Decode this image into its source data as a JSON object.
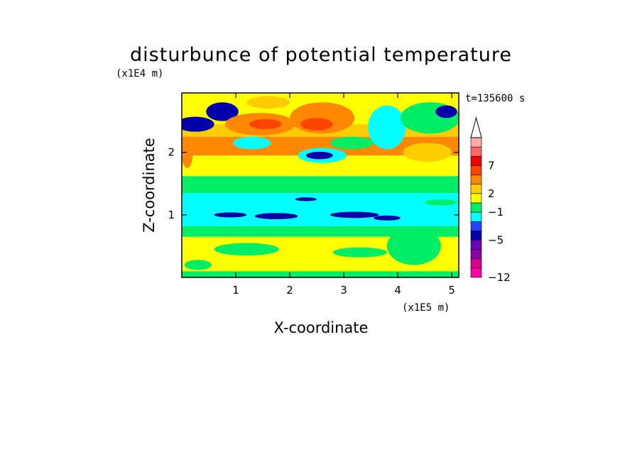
{
  "chart_data": {
    "type": "heatmap",
    "title": "disturbunce of potential temperature",
    "xlabel": "X-coordinate",
    "ylabel": "Z-coordinate",
    "x_scale_label": "(x1E5 m)",
    "y_scale_label": "(x1E4 m)",
    "time_label": "t=135600 s",
    "xlim": [
      0,
      5.13
    ],
    "ylim": [
      0,
      2.95
    ],
    "x_ticks": [
      1,
      2,
      3,
      4,
      5
    ],
    "y_ticks": [
      1,
      2
    ],
    "x_tick_labels": [
      "1",
      "2",
      "3",
      "4",
      "5"
    ],
    "y_tick_labels": [
      "1",
      "2"
    ],
    "colorbar": {
      "colors": [
        "#ff00aa",
        "#d6008f",
        "#8800aa",
        "#6a00b8",
        "#0000aa",
        "#2244ff",
        "#00ffff",
        "#00ee66",
        "#ffff00",
        "#ffcc00",
        "#ff8800",
        "#ff4400",
        "#ee0000",
        "#ff6666",
        "#ffaaaa"
      ],
      "tick_labels": [
        "7",
        "2",
        "−1",
        "−5",
        "−12"
      ],
      "extend": "max"
    },
    "bands": [
      {
        "z0": 0.0,
        "z1": 0.1,
        "level": 7
      },
      {
        "z0": 0.1,
        "z1": 0.65,
        "level": 8
      },
      {
        "z0": 0.65,
        "z1": 0.82,
        "level": 7
      },
      {
        "z0": 0.82,
        "z1": 1.35,
        "level": 6
      },
      {
        "z0": 1.35,
        "z1": 1.62,
        "level": 7
      },
      {
        "z0": 1.62,
        "z1": 1.95,
        "level": 8
      },
      {
        "z0": 1.95,
        "z1": 2.25,
        "level": 10
      },
      {
        "z0": 2.25,
        "z1": 2.45,
        "level": 9
      },
      {
        "z0": 2.45,
        "z1": 2.95,
        "level": 8
      }
    ],
    "features": [
      {
        "x": 0.25,
        "z": 2.45,
        "rx": 0.35,
        "rz": 0.12,
        "level": 4
      },
      {
        "x": 0.75,
        "z": 2.65,
        "rx": 0.3,
        "rz": 0.15,
        "level": 4
      },
      {
        "x": 1.45,
        "z": 2.45,
        "rx": 0.65,
        "rz": 0.18,
        "level": 10
      },
      {
        "x": 1.55,
        "z": 2.45,
        "rx": 0.3,
        "rz": 0.08,
        "level": 11
      },
      {
        "x": 2.6,
        "z": 2.55,
        "rx": 0.6,
        "rz": 0.25,
        "level": 10
      },
      {
        "x": 2.5,
        "z": 2.45,
        "rx": 0.3,
        "rz": 0.1,
        "level": 11
      },
      {
        "x": 1.6,
        "z": 2.8,
        "rx": 0.4,
        "rz": 0.1,
        "level": 9
      },
      {
        "x": 0.1,
        "z": 1.95,
        "rx": 0.1,
        "rz": 0.2,
        "level": 10
      },
      {
        "x": 1.3,
        "z": 2.15,
        "rx": 0.35,
        "rz": 0.1,
        "level": 6
      },
      {
        "x": 2.6,
        "z": 1.95,
        "rx": 0.45,
        "rz": 0.12,
        "level": 6
      },
      {
        "x": 2.55,
        "z": 1.95,
        "rx": 0.25,
        "rz": 0.06,
        "level": 4
      },
      {
        "x": 3.15,
        "z": 2.15,
        "rx": 0.4,
        "rz": 0.1,
        "level": 7
      },
      {
        "x": 3.8,
        "z": 2.4,
        "rx": 0.35,
        "rz": 0.35,
        "level": 6
      },
      {
        "x": 4.6,
        "z": 2.55,
        "rx": 0.55,
        "rz": 0.25,
        "level": 7
      },
      {
        "x": 4.9,
        "z": 2.65,
        "rx": 0.2,
        "rz": 0.1,
        "level": 4
      },
      {
        "x": 4.55,
        "z": 2.0,
        "rx": 0.45,
        "rz": 0.15,
        "level": 9
      },
      {
        "x": 0.9,
        "z": 1.0,
        "rx": 0.3,
        "rz": 0.04,
        "level": 4
      },
      {
        "x": 1.75,
        "z": 0.98,
        "rx": 0.4,
        "rz": 0.05,
        "level": 4
      },
      {
        "x": 3.2,
        "z": 1.0,
        "rx": 0.45,
        "rz": 0.05,
        "level": 4
      },
      {
        "x": 3.8,
        "z": 0.95,
        "rx": 0.25,
        "rz": 0.04,
        "level": 4
      },
      {
        "x": 2.3,
        "z": 1.25,
        "rx": 0.2,
        "rz": 0.03,
        "level": 4
      },
      {
        "x": 4.8,
        "z": 1.2,
        "rx": 0.3,
        "rz": 0.05,
        "level": 7
      },
      {
        "x": 1.2,
        "z": 0.45,
        "rx": 0.6,
        "rz": 0.1,
        "level": 7
      },
      {
        "x": 3.3,
        "z": 0.4,
        "rx": 0.5,
        "rz": 0.08,
        "level": 7
      },
      {
        "x": 0.3,
        "z": 0.2,
        "rx": 0.25,
        "rz": 0.08,
        "level": 7
      },
      {
        "x": 4.3,
        "z": 0.5,
        "rx": 0.5,
        "rz": 0.3,
        "level": 7
      }
    ]
  }
}
